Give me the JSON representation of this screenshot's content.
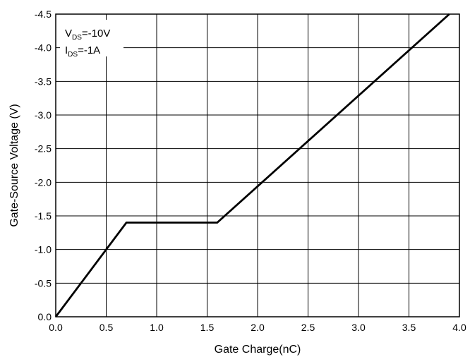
{
  "chart_data": {
    "type": "line",
    "xlabel": "Gate Charge(nC)",
    "ylabel": "Gate-Source Voltage (V)",
    "xlim": [
      0,
      4.0
    ],
    "ylim": [
      0,
      -4.5
    ],
    "y_axis_inverted": true,
    "grid": true,
    "x_ticks": [
      "0.0",
      "0.5",
      "1.0",
      "1.5",
      "2.0",
      "2.5",
      "3.0",
      "3.5",
      "4.0"
    ],
    "y_ticks": [
      "0.0",
      "-0.5",
      "-1.0",
      "-1.5",
      "-2.0",
      "-2.5",
      "-3.0",
      "-3.5",
      "-4.0",
      "-4.5"
    ],
    "series": [
      {
        "x": [
          0.0,
          0.7,
          1.6,
          3.9
        ],
        "y": [
          0.0,
          -1.4,
          -1.4,
          -4.5
        ]
      }
    ],
    "annotations": {
      "line1_main": "V",
      "line1_sub": "DS",
      "line1_rest": "=-10V",
      "line2_main": "I",
      "line2_sub": "DS",
      "line2_rest": "=-1A"
    }
  }
}
